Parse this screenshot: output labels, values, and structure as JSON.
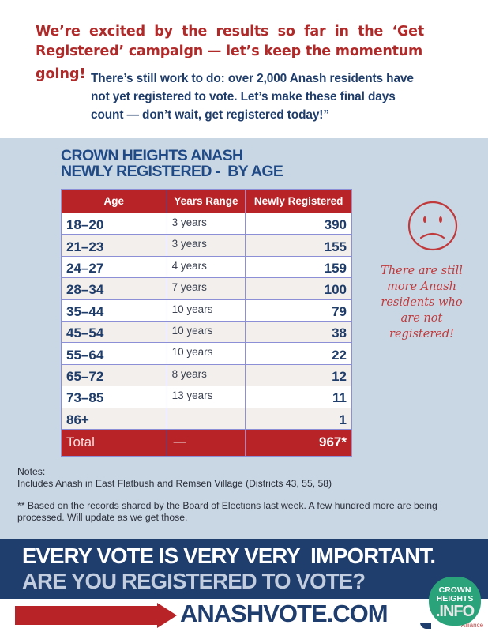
{
  "intro": {
    "headline": "We’re excited by the results so far in the ‘Get Registered’ campaign — let’s keep the momentum",
    "headline_end": "going!",
    "body": "There’s still work to do: over 2,000 Anash residents have not yet registered to vote. Let’s make these final days count — don’t wait, get registered today!”"
  },
  "table": {
    "title_line1": "CROWN HEIGHTS ANASH",
    "title_line2": "NEWLY REGISTERED -  BY AGE",
    "headers": [
      "Age",
      "Years Range",
      "Newly Registered"
    ],
    "rows": [
      {
        "age": "18–20",
        "range": "3 years",
        "count": "390"
      },
      {
        "age": "21–23",
        "range": "3 years",
        "count": "155"
      },
      {
        "age": "24–27",
        "range": "4 years",
        "count": "159"
      },
      {
        "age": "28–34",
        "range": "7 years",
        "count": "100"
      },
      {
        "age": "35–44",
        "range": "10 years",
        "count": "79"
      },
      {
        "age": "45–54",
        "range": "10 years",
        "count": "38"
      },
      {
        "age": "55–64",
        "range": "10 years",
        "count": "22"
      },
      {
        "age": "65–72",
        "range": "8 years",
        "count": "12"
      },
      {
        "age": "73–85",
        "range": "13 years",
        "count": "11"
      },
      {
        "age": "86+",
        "range": "",
        "count": "1"
      }
    ],
    "total": {
      "label": "Total",
      "range": "—",
      "count": "967*"
    }
  },
  "side_note": {
    "icon": "frown-face-icon",
    "text": "There are still more Anash residents who are not registered!"
  },
  "notes": {
    "heading": "Notes:",
    "line1": "Includes Anash in East Flatbush and Remsen Village (Districts 43, 55, 58)",
    "footnote": "** Based on the records shared by the Board of Elections last week. A few hundred more are being processed. Will update as we get those."
  },
  "banner": {
    "line1": "EVERY VOTE IS VERY VERY  IMPORTANT.",
    "line2": "ARE YOU REGISTERED TO VOTE?",
    "url": "ANASHVOTE.COM"
  },
  "logo": {
    "line1": "CROWN",
    "line2": "HEIGHTS",
    "line3": ".INFO",
    "partner": "Alliance"
  },
  "colors": {
    "red": "#b82327",
    "navy": "#1f3e6e",
    "panel": "#c9d6e3",
    "logo_green": "#2aa37a"
  }
}
